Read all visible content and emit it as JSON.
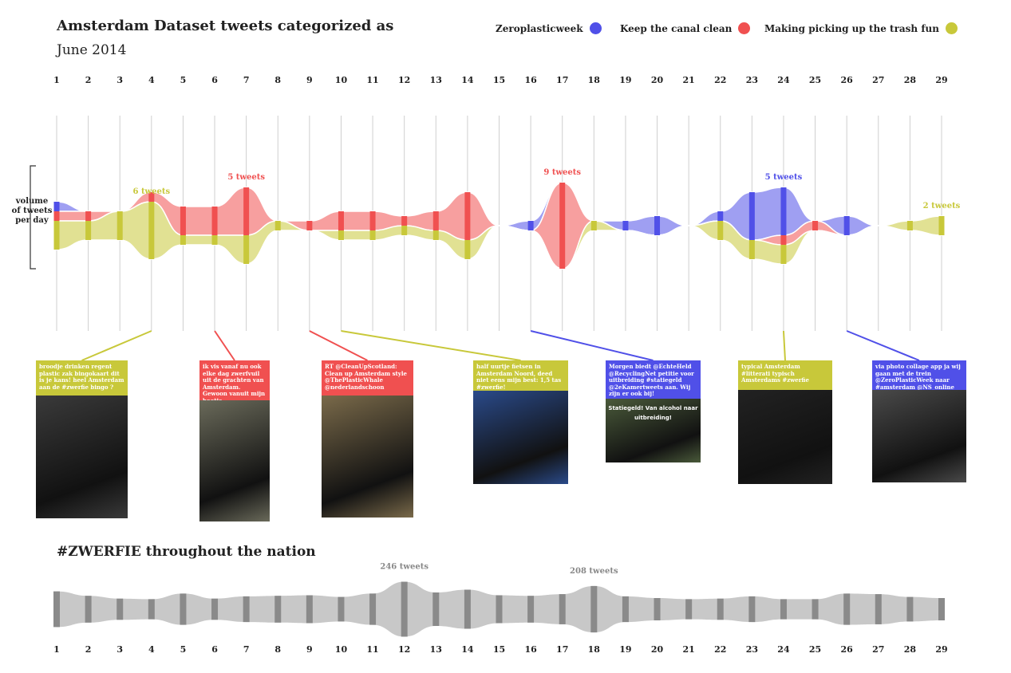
{
  "title": "Amsterdam Dataset tweets categorized as",
  "subtitle": "June 2014",
  "legend": [
    {
      "label": "Zeroplasticweek",
      "color": "#5050e8"
    },
    {
      "label": "Keep the canal clean",
      "color": "#f05050"
    },
    {
      "label": "Making picking up the trash fun",
      "color": "#c8c83a"
    }
  ],
  "y_axis_label": "volume of tweets per day",
  "section2_title": "#ZWERFIE throughout the nation",
  "chart_data": [
    {
      "type": "area",
      "title": "Amsterdam Dataset tweets categorized as",
      "x_label": "",
      "y_label": "volume of tweets per day",
      "x": [
        1,
        2,
        3,
        4,
        5,
        6,
        7,
        8,
        9,
        10,
        11,
        12,
        13,
        14,
        15,
        16,
        17,
        18,
        19,
        20,
        21,
        22,
        23,
        24,
        25,
        26,
        27,
        28,
        29
      ],
      "series": [
        {
          "name": "Zeroplasticweek",
          "color": "#5050e8",
          "values": [
            1,
            0,
            0,
            0,
            0,
            0,
            0,
            0,
            0,
            0,
            0,
            0,
            0,
            0,
            0,
            1,
            0,
            0,
            1,
            2,
            0,
            1,
            5,
            5,
            0,
            2,
            0,
            0,
            0
          ]
        },
        {
          "name": "Keep the canal clean",
          "color": "#f05050",
          "values": [
            1,
            1,
            0,
            1,
            3,
            3,
            5,
            0,
            1,
            2,
            2,
            1,
            2,
            5,
            0,
            0,
            9,
            0,
            0,
            0,
            0,
            0,
            0,
            1,
            1,
            0,
            0,
            0,
            0
          ]
        },
        {
          "name": "Making picking up the trash fun",
          "color": "#c8c83a",
          "values": [
            3,
            2,
            3,
            6,
            1,
            1,
            3,
            1,
            0,
            1,
            1,
            1,
            1,
            2,
            0,
            0,
            0,
            1,
            0,
            0,
            0,
            2,
            2,
            2,
            0,
            0,
            0,
            1,
            2
          ]
        }
      ],
      "annotations": [
        {
          "day": 4,
          "text": "6 tweets",
          "series": "Making picking up the trash fun"
        },
        {
          "day": 7,
          "text": "5 tweets",
          "series": "Keep the canal clean"
        },
        {
          "day": 17,
          "text": "9 tweets",
          "series": "Keep the canal clean"
        },
        {
          "day": 24,
          "text": "5 tweets",
          "series": "Zeroplasticweek"
        },
        {
          "day": 29,
          "text": "2 tweets",
          "series": "Making picking up the trash fun"
        }
      ]
    },
    {
      "type": "area",
      "title": "#ZWERFIE throughout the nation",
      "x": [
        1,
        2,
        3,
        4,
        5,
        6,
        7,
        8,
        9,
        10,
        11,
        12,
        13,
        14,
        15,
        16,
        17,
        18,
        19,
        20,
        21,
        22,
        23,
        24,
        25,
        26,
        27,
        28,
        29
      ],
      "values": [
        160,
        120,
        95,
        90,
        140,
        95,
        115,
        120,
        125,
        110,
        140,
        246,
        150,
        175,
        125,
        120,
        135,
        208,
        115,
        100,
        90,
        95,
        115,
        90,
        90,
        140,
        135,
        110,
        100
      ],
      "color": "#c8c8c8",
      "annotations": [
        {
          "day": 12,
          "text": "246 tweets"
        },
        {
          "day": 18,
          "text": "208 tweets"
        }
      ]
    }
  ],
  "tweets": [
    {
      "day": 4,
      "color": "#c8c83a",
      "text": "broodje drinken regent plastic zak bingokaart dit is je kans! heel Amsterdam aan de #zwerfie bingo ?"
    },
    {
      "day": 6,
      "color": "#f05050",
      "text": "ik vis vanaf nu ook elke dag zwerfvuil uit de grachten van Amsterdam. Gewoon vanuit mijn bootje."
    },
    {
      "day": 9,
      "color": "#f05050",
      "text": "RT @CleanUpScotland: Clean up Amsterdam style @ThePlasticWhale @nederlandschoon"
    },
    {
      "day": 10,
      "color": "#c8c83a",
      "text": "half uurtje fietsen in Amsterdam Noord, deed niet eens mijn best: 1,5 tas #zwerfie!"
    },
    {
      "day": 16,
      "color": "#5050e8",
      "text": "Morgen biedt @EchteHeld @RecyclingNet petitie voor uitbreiding #statiegeld @2eKamertweets aan. Wij zijn er ook bij!",
      "image_text": "Statiegeld! Van alcohol naar uitbreiding!"
    },
    {
      "day": 24,
      "color": "#c8c83a",
      "text": "typical Amsterdam #litterati typisch Amsterdams #zwerfie"
    },
    {
      "day": 26,
      "color": "#5050e8",
      "text": "via photo collage app ja wij gaan met de trein @ZeroPlasticWeek naar #amsterdam @NS_online"
    }
  ]
}
